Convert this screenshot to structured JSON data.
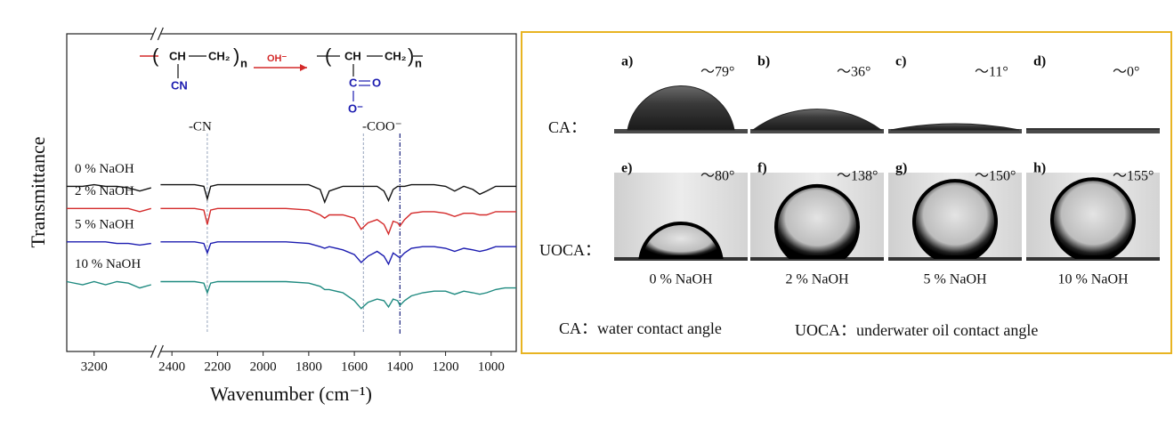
{
  "chart_data": {
    "type": "line",
    "x_label": "Wavenumber (cm⁻¹)",
    "y_label": "Transmittance",
    "xlim": [
      3320,
      890
    ],
    "x_break": [
      2940,
      2450
    ],
    "xticks": [
      3200,
      2400,
      2200,
      2000,
      1800,
      1600,
      1400,
      1200,
      1000
    ],
    "ylim": [
      0,
      100
    ],
    "x": [
      3320,
      3250,
      3200,
      3150,
      3100,
      3050,
      3000,
      2950,
      2700,
      2450,
      2400,
      2350,
      2300,
      2260,
      2245,
      2230,
      2200,
      2100,
      2000,
      1900,
      1800,
      1750,
      1730,
      1710,
      1650,
      1600,
      1570,
      1540,
      1500,
      1470,
      1450,
      1430,
      1410,
      1400,
      1380,
      1350,
      1300,
      1250,
      1200,
      1160,
      1120,
      1080,
      1050,
      1020,
      980,
      940,
      890
    ],
    "series": [
      {
        "name": "0 % NaOH",
        "color": "#111111",
        "values": [
          52,
          52,
          52.5,
          52,
          52,
          51.5,
          50.5,
          51.5,
          null,
          52.5,
          52.5,
          52.5,
          52.5,
          52,
          48,
          52,
          52.5,
          52.5,
          52.5,
          52.5,
          52.5,
          51,
          47,
          50.5,
          52,
          52,
          52,
          52,
          52,
          50.5,
          47.5,
          51,
          52,
          52,
          52,
          52.5,
          52.5,
          52.5,
          52,
          50.5,
          52,
          51,
          49.5,
          50.5,
          52,
          52,
          52
        ]
      },
      {
        "name": "2 % NaOH",
        "color": "#d42a2a",
        "values": [
          45,
          45,
          45,
          45,
          45,
          45,
          44,
          45,
          null,
          45,
          45,
          45,
          45,
          44.5,
          40,
          44.5,
          45,
          45,
          45,
          45,
          44.5,
          43,
          42,
          43,
          43,
          42,
          38.5,
          40.5,
          41.5,
          40,
          37,
          41,
          40.5,
          39.5,
          41.5,
          43.5,
          44,
          44,
          43.5,
          42.5,
          43.5,
          43.5,
          43,
          43,
          44,
          44,
          44
        ]
      },
      {
        "name": "5 % NaOH",
        "color": "#1c1cb0",
        "values": [
          34.5,
          34.5,
          34.5,
          34.5,
          34,
          34,
          33.5,
          34,
          null,
          34.5,
          34.5,
          34.5,
          34.5,
          34,
          31,
          34,
          34.5,
          34.5,
          34.5,
          34.5,
          34,
          33,
          32.5,
          33,
          32,
          30.5,
          28,
          30,
          31.5,
          30,
          27.5,
          31,
          30,
          29.5,
          31,
          32.5,
          33,
          33,
          32.5,
          31.5,
          32.5,
          32,
          31.5,
          32,
          33,
          33,
          33
        ]
      },
      {
        "name": "10 % NaOH",
        "color": "#1f8a80",
        "values": [
          22,
          21,
          22,
          21,
          22,
          21.5,
          20,
          21,
          null,
          22,
          22,
          22,
          22,
          21.5,
          18.5,
          21.5,
          22,
          22,
          22,
          22,
          21.5,
          20.5,
          19.5,
          19.5,
          18.5,
          16,
          13.5,
          15.5,
          16.5,
          16,
          14,
          16.5,
          16,
          14.5,
          16,
          17.5,
          18.5,
          19,
          19,
          18,
          19,
          18.5,
          18,
          18.5,
          19.5,
          20,
          20
        ]
      }
    ],
    "markers": [
      {
        "x": 2245,
        "label": "-CN",
        "color": "#a8b4c8"
      },
      {
        "x": 1560,
        "color": "#a8b4c8"
      },
      {
        "x": 1400,
        "label": "-COO⁻",
        "color": "#1a237e"
      }
    ]
  },
  "scheme": {
    "ch": "CH",
    "ch2": "CH₂",
    "n": "n",
    "cn": "CN",
    "reagent": "OH⁻",
    "c": "C",
    "o": "O",
    "o_minus": "O⁻"
  },
  "contact_angles": {
    "rows": [
      {
        "label": "CA：",
        "panels": [
          {
            "letter": "a)",
            "angle": 79,
            "angle_label": "～79°"
          },
          {
            "letter": "b)",
            "angle": 36,
            "angle_label": "～36°"
          },
          {
            "letter": "c)",
            "angle": 11,
            "angle_label": "～11°"
          },
          {
            "letter": "d)",
            "angle": 0,
            "angle_label": "～0°"
          }
        ]
      },
      {
        "label": "UOCA：",
        "panels": [
          {
            "letter": "e)",
            "angle": 80,
            "angle_label": "～80°"
          },
          {
            "letter": "f)",
            "angle": 138,
            "angle_label": "～138°"
          },
          {
            "letter": "g)",
            "angle": 150,
            "angle_label": "～150°"
          },
          {
            "letter": "h)",
            "angle": 155,
            "angle_label": "～155°"
          }
        ]
      }
    ],
    "captions": [
      "0 % NaOH",
      "2 % NaOH",
      "5 % NaOH",
      "10 % NaOH"
    ],
    "legend": [
      "CA：water contact angle",
      "UOCA：underwater oil contact angle"
    ]
  }
}
